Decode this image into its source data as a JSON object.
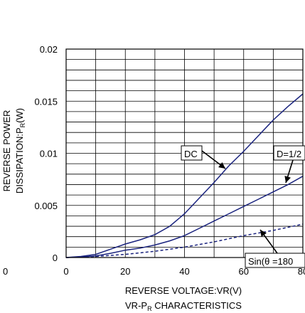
{
  "chart_data": {
    "type": "line",
    "title": "VR-P_R CHARACTERISTICS",
    "xlabel": "REVERSE VOLTAGE:VR(V)",
    "ylabel": [
      "REVERSE POWER",
      "DISSIPATION:P_R(W)"
    ],
    "xlim": [
      0,
      80
    ],
    "ylim": [
      0,
      0.02
    ],
    "x_ticks": [
      0,
      20,
      40,
      60,
      80
    ],
    "x_tick_labels": [
      "0",
      "20",
      "40",
      "60",
      "80"
    ],
    "y_ticks": [
      0,
      0.005,
      0.01,
      0.015,
      0.02
    ],
    "y_tick_labels": [
      "0",
      "0.005",
      "0.01",
      "0.015",
      "0.02"
    ],
    "grid": true,
    "series": [
      {
        "name": "DC",
        "style": "solid",
        "color": "#1a237e",
        "x": [
          0,
          5,
          10,
          15,
          20,
          25,
          30,
          35,
          40,
          45,
          50,
          55,
          60,
          65,
          70,
          75,
          80
        ],
        "y": [
          0,
          0.0001,
          0.0003,
          0.0008,
          0.0013,
          0.0017,
          0.0022,
          0.003,
          0.0042,
          0.0057,
          0.0072,
          0.0088,
          0.0102,
          0.0117,
          0.0132,
          0.0145,
          0.0157
        ]
      },
      {
        "name": "D=1/2",
        "style": "solid",
        "color": "#1a237e",
        "x": [
          0,
          5,
          10,
          15,
          20,
          25,
          30,
          35,
          40,
          45,
          50,
          55,
          60,
          65,
          70,
          75,
          80
        ],
        "y": [
          0,
          5e-05,
          0.00015,
          0.0004,
          0.0007,
          0.0009,
          0.0012,
          0.0016,
          0.0021,
          0.0028,
          0.0035,
          0.0042,
          0.0049,
          0.0056,
          0.0063,
          0.007,
          0.0078
        ]
      },
      {
        "name": "Sin(θ =180",
        "style": "dashed",
        "color": "#1a237e",
        "x": [
          0,
          10,
          20,
          30,
          40,
          50,
          60,
          70,
          80
        ],
        "y": [
          0,
          0.0001,
          0.0003,
          0.0006,
          0.001,
          0.0015,
          0.0021,
          0.0026,
          0.0032
        ]
      }
    ],
    "annotations": [
      {
        "label": "DC",
        "series": "DC"
      },
      {
        "label": "D=1/2",
        "series": "D=1/2"
      },
      {
        "label": "Sin(θ =180",
        "series": "Sin(θ =180"
      }
    ],
    "partial_left_tick_label": "0",
    "colors": {
      "curve": "#1a237e",
      "axis": "#000000",
      "grid": "#000000"
    }
  }
}
